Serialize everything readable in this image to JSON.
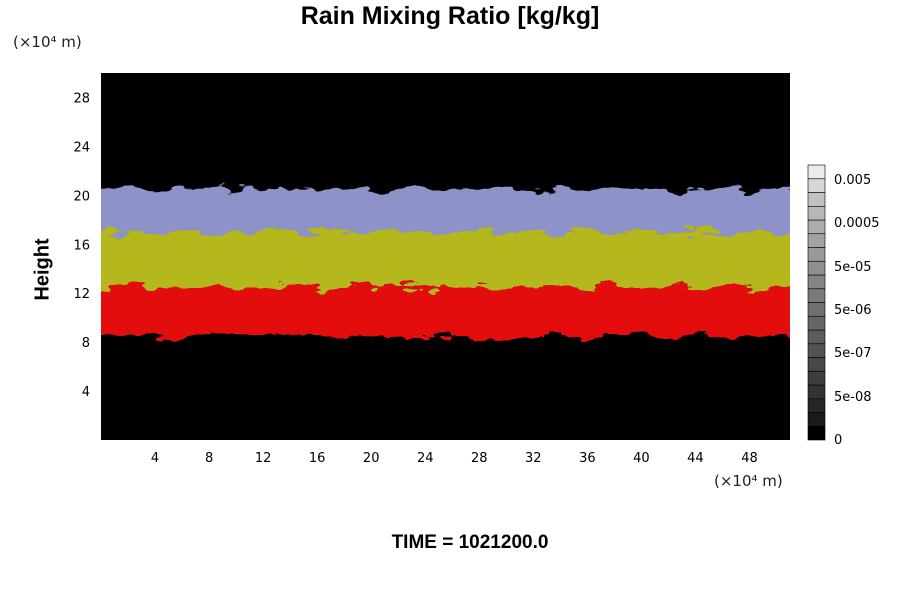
{
  "time_label": "TIME",
  "time_value": "1021200.0",
  "chart_data": {
    "type": "heatmap",
    "title": "Rain Mixing Ratio [kg/kg]",
    "xlabel": "",
    "ylabel": "Height",
    "x_unit": "(×10⁴ m)",
    "y_unit": "(×10⁴ m)",
    "xlim": [
      0,
      51
    ],
    "ylim": [
      0,
      30
    ],
    "x_ticks": [
      4,
      8,
      12,
      16,
      20,
      24,
      28,
      32,
      36,
      40,
      44,
      48
    ],
    "y_ticks": [
      4,
      8,
      12,
      16,
      20,
      24,
      28
    ],
    "colorbar": {
      "tick_labels": [
        "0.005",
        "0.0005",
        "5e-05",
        "5e-06",
        "5e-07",
        "5e-08",
        "0"
      ],
      "colors": [
        "#000000",
        "#1a1a1a",
        "#262626",
        "#333333",
        "#3d3d3d",
        "#474747",
        "#525252",
        "#5c5c5c",
        "#666666",
        "#707070",
        "#7a7a7a",
        "#858585",
        "#8f8f8f",
        "#999999",
        "#a3a3a3",
        "#adadad",
        "#b8b8b8",
        "#c2c2c2",
        "#d6d6d6",
        "#ebebeb"
      ]
    },
    "bands": [
      {
        "y_min": 17,
        "y_max": 20.5,
        "color": "#8d93c8"
      },
      {
        "y_min": 12.5,
        "y_max": 17,
        "color": "#b5b81c"
      },
      {
        "y_min": 8.5,
        "y_max": 12.5,
        "color": "#e41010"
      }
    ],
    "grid": false
  }
}
